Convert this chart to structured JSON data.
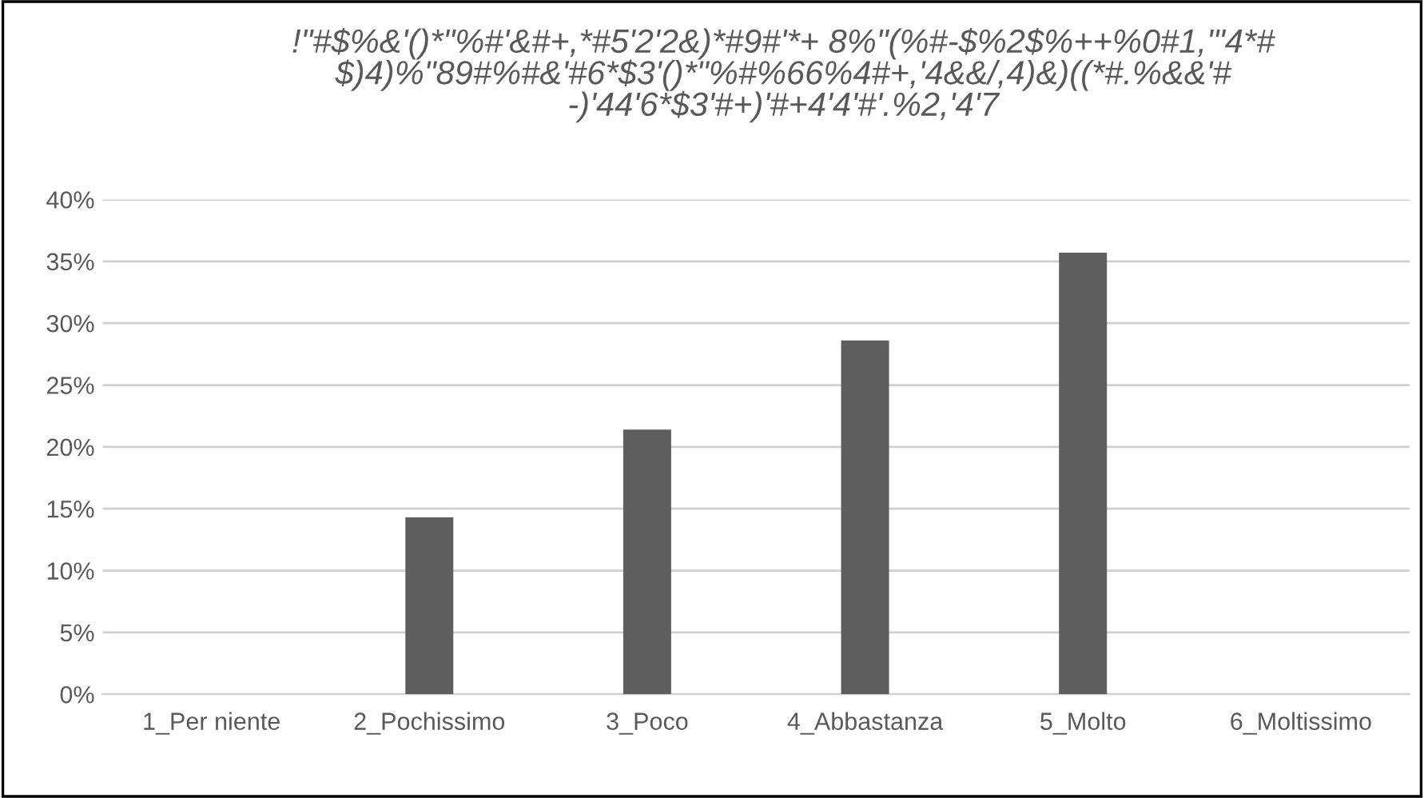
{
  "chart_data": {
    "type": "bar",
    "title": "!\"#$%&'()*\"%#'&#+,*#5'2'2&)*#9#'*+ 8%\"(%#-$%2$%++%0#1,'\"4*#\n$)4)%\"89#%#&'#6*$3'()*\"%#%66%4#+,'4&&/,4)&)((*#.%&&'#\n-)'44'6*$3'#+)'#+4'4'#'.%2,'4'7",
    "categories": [
      "1_Per niente",
      "2_Pochissimo",
      "3_Poco",
      "4_Abbastanza",
      "5_Molto",
      "6_Moltissimo"
    ],
    "values": [
      0,
      14.3,
      21.4,
      28.6,
      35.7,
      0
    ],
    "color": "#5e5e5e",
    "ylim": [
      0,
      40
    ],
    "yticks": [
      {
        "value": 0,
        "label": "0%"
      },
      {
        "value": 5,
        "label": "5%"
      },
      {
        "value": 10,
        "label": "10%"
      },
      {
        "value": 15,
        "label": "15%"
      },
      {
        "value": 20,
        "label": "20%"
      },
      {
        "value": 25,
        "label": "25%"
      },
      {
        "value": 30,
        "label": "30%"
      },
      {
        "value": 35,
        "label": "35%"
      },
      {
        "value": 40,
        "label": "40%"
      }
    ],
    "grid": "y",
    "legend": false
  }
}
